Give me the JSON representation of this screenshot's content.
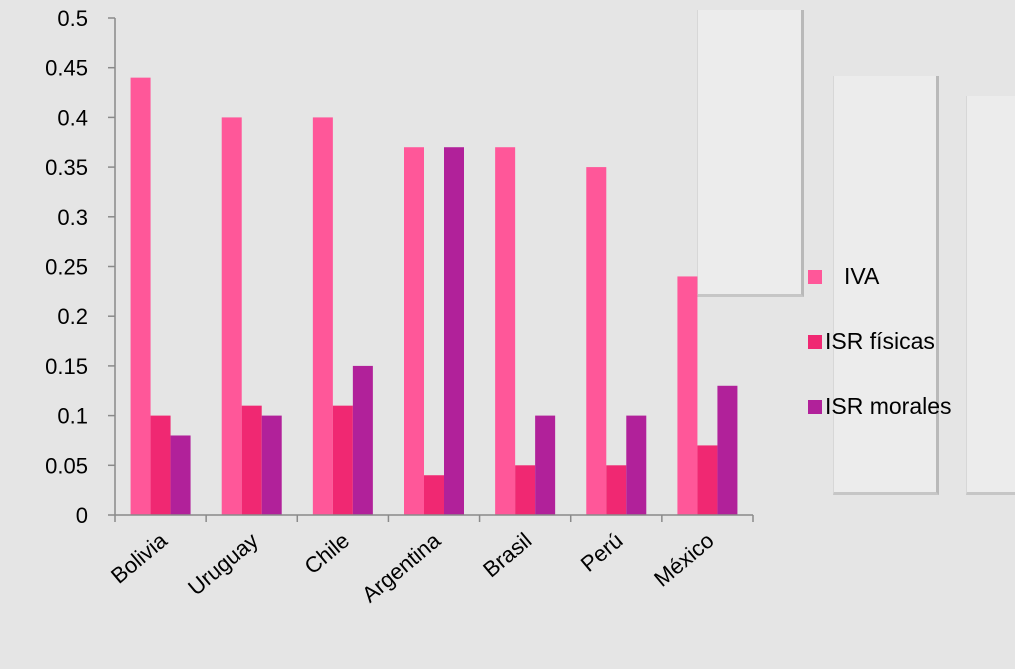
{
  "chart_data": {
    "type": "bar",
    "categories": [
      "Bolivia",
      "Uruguay",
      "Chile",
      "Argentina",
      "Brasil",
      "Perú",
      "México"
    ],
    "series": [
      {
        "name": "IVA",
        "values": [
          0.44,
          0.4,
          0.4,
          0.37,
          0.37,
          0.35,
          0.24
        ],
        "color": "#ff5799"
      },
      {
        "name": "ISR físicas",
        "values": [
          0.1,
          0.11,
          0.11,
          0.04,
          0.05,
          0.05,
          0.07
        ],
        "color": "#f02872"
      },
      {
        "name": "ISR morales",
        "values": [
          0.08,
          0.1,
          0.15,
          0.37,
          0.1,
          0.1,
          0.13
        ],
        "color": "#b1219a"
      }
    ],
    "ylim": [
      0,
      0.5
    ],
    "yticks": [
      "0",
      "0.05",
      "0.1",
      "0.15",
      "0.2",
      "0.25",
      "0.3",
      "0.35",
      "0.4",
      "0.45",
      "0.5"
    ],
    "legend": {
      "placement": "right"
    },
    "title": "",
    "xlabel": "",
    "ylabel": "",
    "grid": false
  }
}
